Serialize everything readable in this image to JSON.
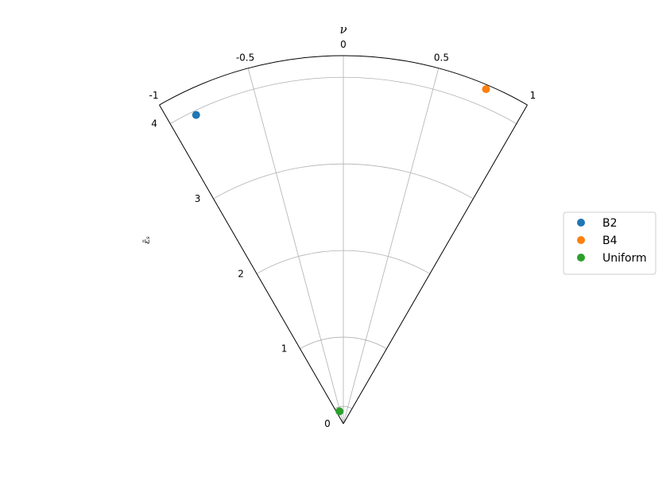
{
  "chart_data": {
    "type": "scatter",
    "projection": "polar-sector",
    "theta_axis": {
      "label": "ν",
      "range": [
        -1,
        1
      ],
      "ticks": [
        -1,
        -0.5,
        0,
        0.5,
        1
      ],
      "tick_labels": [
        "-1",
        "-0.5",
        "0",
        "0.5",
        "1"
      ]
    },
    "r_axis": {
      "label": "ε̄ₛ",
      "range": [
        0,
        4.25
      ],
      "ticks": [
        0,
        1,
        2,
        3,
        4
      ],
      "tick_labels": [
        "0",
        "1",
        "2",
        "3",
        "4"
      ]
    },
    "grid": true,
    "legend_position": "right",
    "series": [
      {
        "name": "B2",
        "color": "#1f77b4",
        "points": [
          {
            "x": -0.85,
            "y": 3.95
          }
        ]
      },
      {
        "name": "B4",
        "color": "#ff7f0e",
        "points": [
          {
            "x": 0.77,
            "y": 4.2
          }
        ]
      },
      {
        "name": "Uniform",
        "color": "#2ca02c",
        "points": [
          {
            "x": -0.57,
            "y": 0.15
          }
        ]
      }
    ]
  }
}
